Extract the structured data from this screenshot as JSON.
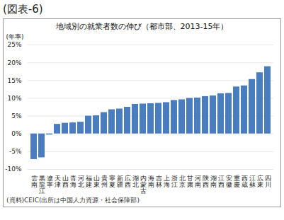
{
  "chart_data": {
    "type": "bar",
    "header": "(図表-6)",
    "title": "地域別の就業者数の伸び（都市部、2013-15年）",
    "ylabel": "(年率)",
    "source": "(資料)CEIC(出所は中国人力資源・社会保障部)",
    "categories": [
      "雲南",
      "黒龍江",
      "遼寧",
      "天津",
      "山西",
      "青海",
      "河北",
      "福建",
      "山東",
      "貴州",
      "寧夏",
      "新疆",
      "広西",
      "湖北",
      "内蒙古",
      "海南",
      "吉林",
      "上海",
      "浙江",
      "北京",
      "甘粛",
      "河南",
      "陝西",
      "湖南",
      "江西",
      "安徽",
      "重慶",
      "西蔵",
      "江蘇",
      "広東",
      "四川"
    ],
    "values": [
      -7.2,
      -6.7,
      -0.3,
      2.7,
      3.0,
      3.1,
      3.3,
      5.0,
      5.1,
      6.0,
      6.8,
      7.0,
      7.5,
      8.3,
      8.4,
      8.5,
      8.6,
      8.8,
      9.4,
      9.6,
      10.0,
      10.1,
      10.5,
      10.7,
      11.3,
      11.4,
      13.2,
      13.5,
      15.3,
      17.2,
      18.9
    ],
    "color": "#4a7cc0",
    "ylim": [
      -10,
      25
    ],
    "yticks": [
      {
        "value": -10,
        "label": "-10%"
      },
      {
        "value": -5,
        "label": "-5%"
      },
      {
        "value": 0,
        "label": "0%"
      },
      {
        "value": 5,
        "label": "5%"
      },
      {
        "value": 10,
        "label": "10%"
      },
      {
        "value": 15,
        "label": "15%"
      },
      {
        "value": 20,
        "label": "20%"
      },
      {
        "value": 25,
        "label": "25%"
      }
    ],
    "grid": true
  }
}
